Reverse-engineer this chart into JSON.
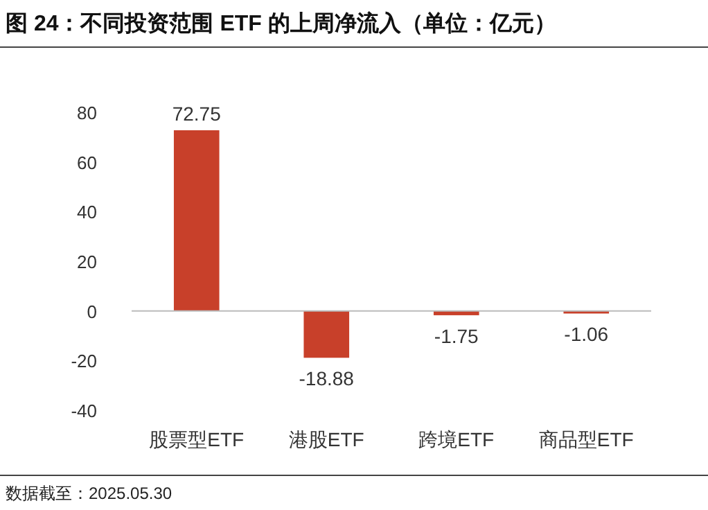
{
  "chart_data": {
    "type": "bar",
    "title": "图 24：不同投资范围 ETF 的上周净流入（单位：亿元）",
    "categories": [
      "股票型ETF",
      "港股ETF",
      "跨境ETF",
      "商品型ETF"
    ],
    "values": [
      72.75,
      -18.88,
      -1.75,
      -1.06
    ],
    "color": "#c8402a",
    "ylim": [
      -40,
      80
    ],
    "yticks": [
      -40,
      -20,
      0,
      20,
      40,
      60,
      80
    ],
    "data_labels": true,
    "annotations": [
      "数据截至：2025.05.30"
    ]
  }
}
